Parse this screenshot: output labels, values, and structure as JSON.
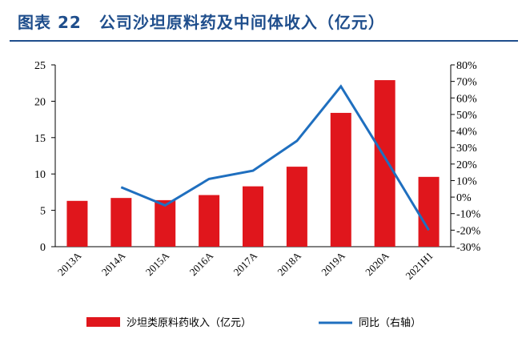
{
  "header": {
    "figure_label": "图表",
    "figure_number": "22",
    "title": "公司沙坦原料药及中间体收入（亿元）"
  },
  "chart_data": {
    "type": "bar",
    "categories": [
      "2013A",
      "2014A",
      "2015A",
      "2016A",
      "2017A",
      "2018A",
      "2019A",
      "2020A",
      "2021H1"
    ],
    "series": [
      {
        "name": "沙坦类原料药收入（亿元）",
        "type": "bar",
        "axis": "left",
        "color": "#e0161c",
        "values": [
          6.3,
          6.7,
          6.4,
          7.1,
          8.3,
          11.0,
          18.4,
          22.9,
          9.6
        ]
      },
      {
        "name": "同比（右轴）",
        "type": "line",
        "axis": "right",
        "color": "#1f6fbf",
        "values": [
          null,
          6,
          -5,
          11,
          16,
          34,
          67,
          24,
          -20
        ]
      }
    ],
    "y_left": {
      "min": 0,
      "max": 25,
      "ticks": [
        "0",
        "5",
        "10",
        "15",
        "20",
        "25"
      ]
    },
    "y_right": {
      "min": -30,
      "max": 80,
      "ticks": [
        "-30%",
        "-20%",
        "-10%",
        "0%",
        "10%",
        "20%",
        "30%",
        "40%",
        "50%",
        "60%",
        "70%",
        "80%"
      ]
    },
    "grid": false,
    "legend_position": "bottom"
  }
}
